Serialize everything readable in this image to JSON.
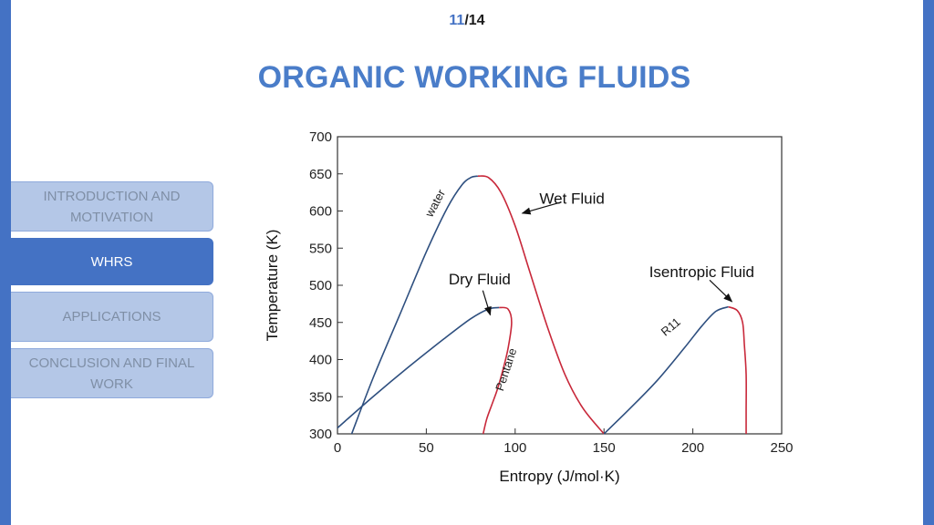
{
  "page": {
    "current": "11",
    "separator": "/",
    "total": "14"
  },
  "title": "ORGANIC WORKING FLUIDS",
  "nav": {
    "items": [
      {
        "label": "INTRODUCTION AND MOTIVATION",
        "active": false
      },
      {
        "label": "WHRS",
        "active": true
      },
      {
        "label": "APPLICATIONS",
        "active": false
      },
      {
        "label": "CONCLUSION AND FINAL WORK",
        "active": false
      }
    ]
  },
  "colors": {
    "accent": "#4472c4",
    "saturated_liquid_line": "#2e4f7f",
    "saturated_vapor_line": "#c8283a"
  },
  "chart_data": {
    "type": "line",
    "xlabel": "Entropy (J/mol·K)",
    "ylabel": "Temperature (K)",
    "xlim": [
      0,
      250
    ],
    "ylim": [
      300,
      700
    ],
    "xticks": [
      0,
      50,
      100,
      150,
      200,
      250
    ],
    "yticks": [
      300,
      350,
      400,
      450,
      500,
      550,
      600,
      650,
      700
    ],
    "grid": false,
    "series": [
      {
        "name": "water",
        "color": "#2e4f7f",
        "x": [
          8,
          20,
          35,
          50,
          62,
          70,
          75,
          79
        ],
        "y": [
          300,
          375,
          460,
          545,
          605,
          635,
          645,
          647
        ]
      },
      {
        "name": "water",
        "color": "#c8283a",
        "x": [
          79,
          85,
          92,
          100,
          108,
          118,
          128,
          138,
          150
        ],
        "y": [
          647,
          645,
          625,
          580,
          520,
          445,
          380,
          335,
          300
        ]
      },
      {
        "name": "Pentane",
        "color": "#2e4f7f",
        "x": [
          0,
          20,
          40,
          60,
          75,
          85,
          91
        ],
        "y": [
          308,
          350,
          390,
          428,
          455,
          468,
          470
        ]
      },
      {
        "name": "Pentane",
        "color": "#c8283a",
        "x": [
          91,
          96,
          98,
          96,
          93,
          90,
          87,
          84,
          82
        ],
        "y": [
          470,
          468,
          450,
          415,
          385,
          360,
          340,
          320,
          300
        ]
      },
      {
        "name": "R11",
        "color": "#2e4f7f",
        "x": [
          150,
          165,
          180,
          195,
          205,
          213,
          220
        ],
        "y": [
          300,
          335,
          372,
          415,
          445,
          465,
          471
        ]
      },
      {
        "name": "R11",
        "color": "#c8283a",
        "x": [
          220,
          225,
          228,
          229,
          230,
          230,
          230
        ],
        "y": [
          471,
          466,
          450,
          420,
          380,
          330,
          300
        ]
      }
    ],
    "annotations": [
      {
        "text": "Wet Fluid",
        "x": 132,
        "y": 610,
        "arrow_to": [
          104,
          597
        ]
      },
      {
        "text": "Dry Fluid",
        "x": 80,
        "y": 501,
        "arrow_to": [
          86,
          460
        ]
      },
      {
        "text": "Isentropic Fluid",
        "x": 205,
        "y": 511,
        "arrow_to": [
          222,
          478
        ]
      }
    ],
    "curve_labels": [
      {
        "text": "water",
        "x": 57,
        "y": 608,
        "angle": -62
      },
      {
        "text": "Pentane",
        "x": 97,
        "y": 385,
        "angle": -72
      },
      {
        "text": "R11",
        "x": 189,
        "y": 440,
        "angle": -40
      }
    ]
  }
}
